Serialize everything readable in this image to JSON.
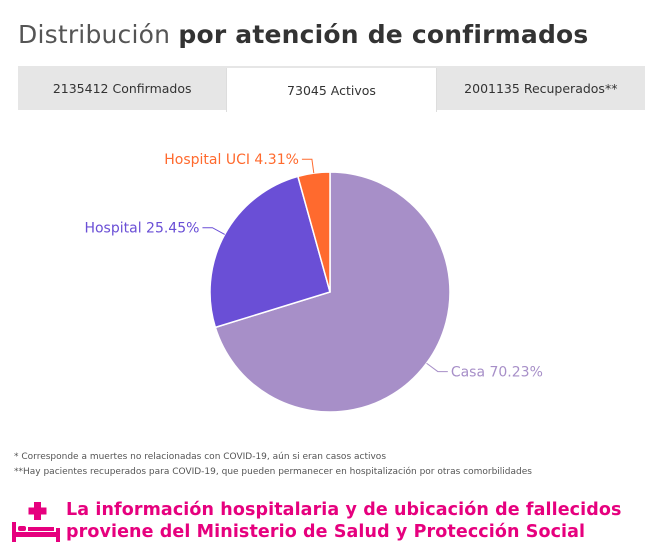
{
  "title": {
    "light": "Distribución",
    "bold": "por atención de confirmados"
  },
  "tabs": [
    {
      "label": "2135412 Confirmados",
      "active": false
    },
    {
      "label": "73045 Activos",
      "active": true
    },
    {
      "label": "2001135 Recuperados**",
      "active": false
    }
  ],
  "chart_data": {
    "type": "pie",
    "slices": [
      {
        "label": "Casa 70.23%",
        "value": 70.23,
        "color": "#a78fc8"
      },
      {
        "label": "Hospital 25.45%",
        "value": 25.45,
        "color": "#6a4fd6"
      },
      {
        "label": "Hospital UCI 4.31%",
        "value": 4.31,
        "color": "#ff6a2e"
      }
    ]
  },
  "notes": [
    "* Corresponde a muertes no relacionadas con COVID-19, aún si eran casos activos",
    "**Hay pacientes recuperados para COVID-19, que pueden permanecer en hospitalización por otras comorbilidades"
  ],
  "footer": {
    "icon": "hospital-bed-icon",
    "line1": "La información hospitalaria y de ubicación de fallecidos",
    "line2": "proviene del Ministerio de Salud y Protección Social",
    "color": "#e6007e"
  }
}
